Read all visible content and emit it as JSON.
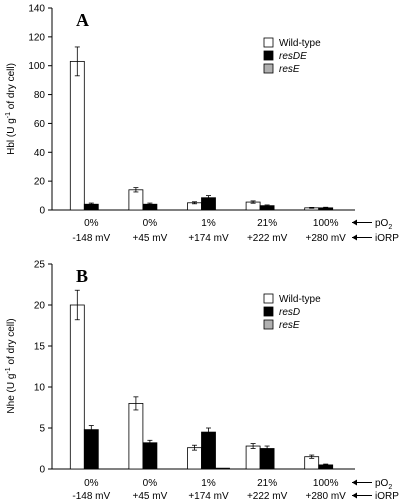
{
  "chart_data": [
    {
      "type": "bar",
      "panel_label": "A",
      "ylabel_main": "Hbl (U g",
      "ylabel_sup": "-1",
      "ylabel_tail": " of dry cell)",
      "ylim": [
        0,
        140
      ],
      "yticks": [
        "0",
        "20",
        "40",
        "60",
        "80",
        "100",
        "120",
        "140"
      ],
      "categories": [
        "0%",
        "0%",
        "1%",
        "21%",
        "100%"
      ],
      "categories_line2": [
        "-148 mV",
        "+45 mV",
        "+174 mV",
        "+222 mV",
        "+280 mV"
      ],
      "row_labels": [
        "pO",
        "iORP"
      ],
      "row_label_sub": "2",
      "legend_position": "top-right",
      "series": [
        {
          "name": "Wild-type",
          "values": [
            103,
            14,
            5,
            5.5,
            1.5
          ],
          "errors": [
            10,
            1.5,
            0.7,
            0.8,
            0.3
          ],
          "color": "#ffffff"
        },
        {
          "name": "resDE",
          "values": [
            4,
            4,
            8.5,
            3,
            1.5
          ],
          "errors": [
            0.8,
            0.8,
            1.5,
            0.5,
            0.4
          ],
          "color": "#000000"
        },
        {
          "name": "resE",
          "values": [
            0,
            0,
            0,
            0,
            0
          ],
          "errors": [
            0,
            0,
            0,
            0,
            0
          ],
          "color": "#b0b0b0"
        }
      ]
    },
    {
      "type": "bar",
      "panel_label": "B",
      "ylabel_main": "Nhe (U g",
      "ylabel_sup": "-1",
      "ylabel_tail": " of dry cell)",
      "ylim": [
        0,
        25
      ],
      "yticks": [
        "0",
        "5",
        "10",
        "15",
        "20",
        "25"
      ],
      "categories": [
        "0%",
        "0%",
        "1%",
        "21%",
        "100%"
      ],
      "categories_line2": [
        "-148 mV",
        "+45 mV",
        "+174 mV",
        "+222 mV",
        "+280 mV"
      ],
      "row_labels": [
        "pO",
        "iORP"
      ],
      "row_label_sub": "2",
      "legend_position": "top-right",
      "series": [
        {
          "name": "Wild-type",
          "values": [
            20,
            8,
            2.6,
            2.8,
            1.5
          ],
          "errors": [
            1.8,
            0.8,
            0.3,
            0.3,
            0.2
          ],
          "color": "#ffffff"
        },
        {
          "name": "resD",
          "values": [
            4.8,
            3.2,
            4.5,
            2.5,
            0.5
          ],
          "errors": [
            0.5,
            0.3,
            0.5,
            0.3,
            0.1
          ],
          "color": "#000000"
        },
        {
          "name": "resE",
          "values": [
            0,
            0,
            0.1,
            0,
            0
          ],
          "errors": [
            0,
            0,
            0,
            0,
            0
          ],
          "color": "#b0b0b0"
        }
      ]
    }
  ]
}
